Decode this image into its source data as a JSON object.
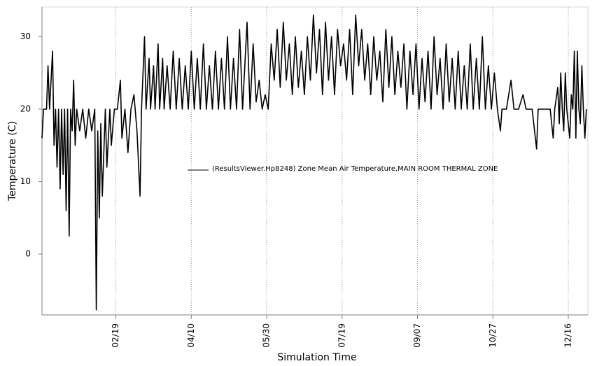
{
  "chart_data": {
    "type": "line",
    "xlabel": "Simulation Time",
    "ylabel": "Temperature (C)",
    "x": [
      "01/01",
      "01/02",
      "01/04",
      "01/05",
      "01/06",
      "01/08",
      "01/09",
      "01/10",
      "01/11",
      "01/12",
      "01/13",
      "01/14",
      "01/15",
      "01/16",
      "01/17",
      "01/18",
      "01/19",
      "01/20",
      "01/21",
      "01/22",
      "01/23",
      "01/24",
      "01/26",
      "01/28",
      "01/30",
      "02/01",
      "02/03",
      "02/05",
      "02/06",
      "02/07",
      "02/08",
      "02/09",
      "02/10",
      "02/12",
      "02/13",
      "02/15",
      "02/16",
      "02/18",
      "02/20",
      "02/22",
      "02/23",
      "02/25",
      "02/27",
      "03/01",
      "03/03",
      "03/05",
      "03/07",
      "03/08",
      "03/10",
      "03/11",
      "03/13",
      "03/14",
      "03/16",
      "03/17",
      "03/19",
      "03/20",
      "03/22",
      "03/23",
      "03/25",
      "03/27",
      "03/29",
      "03/31",
      "04/02",
      "04/04",
      "04/06",
      "04/08",
      "04/10",
      "04/12",
      "04/14",
      "04/16",
      "04/18",
      "04/20",
      "04/22",
      "04/24",
      "04/26",
      "04/28",
      "04/30",
      "05/02",
      "05/04",
      "05/06",
      "05/08",
      "05/10",
      "05/12",
      "05/14",
      "05/17",
      "05/19",
      "05/21",
      "05/23",
      "05/25",
      "05/27",
      "05/29",
      "05/31",
      "06/02",
      "06/04",
      "06/06",
      "06/08",
      "06/10",
      "06/12",
      "06/14",
      "06/16",
      "06/18",
      "06/20",
      "06/22",
      "06/24",
      "06/26",
      "06/28",
      "06/30",
      "07/02",
      "07/04",
      "07/06",
      "07/08",
      "07/10",
      "07/12",
      "07/14",
      "07/16",
      "07/18",
      "07/20",
      "07/22",
      "07/24",
      "07/26",
      "07/28",
      "07/30",
      "08/01",
      "08/03",
      "08/05",
      "08/07",
      "08/09",
      "08/11",
      "08/13",
      "08/15",
      "08/17",
      "08/19",
      "08/21",
      "08/23",
      "08/25",
      "08/27",
      "08/29",
      "08/31",
      "09/02",
      "09/04",
      "09/06",
      "09/08",
      "09/10",
      "09/12",
      "09/14",
      "09/16",
      "09/18",
      "09/20",
      "09/22",
      "09/24",
      "09/26",
      "09/28",
      "09/30",
      "10/02",
      "10/04",
      "10/06",
      "10/08",
      "10/10",
      "10/12",
      "10/14",
      "10/16",
      "10/18",
      "10/20",
      "10/22",
      "10/24",
      "10/26",
      "10/28",
      "10/30",
      "11/01",
      "11/02",
      "11/05",
      "11/08",
      "11/10",
      "11/13",
      "11/16",
      "11/18",
      "11/22",
      "11/25",
      "11/26",
      "11/29",
      "12/01",
      "12/04",
      "12/06",
      "12/07",
      "12/09",
      "12/10",
      "12/11",
      "12/12",
      "12/13",
      "12/14",
      "12/15",
      "12/17",
      "12/18",
      "12/19",
      "12/20",
      "12/21",
      "12/22",
      "12/23",
      "12/24",
      "12/25",
      "12/26",
      "12/27",
      "12/28"
    ],
    "series": [
      {
        "name": "(ResultsViewer.Hp8248) Zone Mean Air Temperature,MAIN ROOM THERMAL ZONE",
        "color": "#000000",
        "values": [
          16,
          20,
          20,
          26,
          20,
          28,
          15,
          20,
          12,
          20,
          9,
          20,
          11,
          20,
          6,
          20,
          2.5,
          20,
          17,
          24,
          15,
          20,
          17,
          20,
          16,
          20,
          17,
          20,
          -7.7,
          17,
          5,
          18,
          8,
          20,
          12,
          20,
          15,
          20,
          20,
          24,
          16,
          20,
          14,
          20,
          22,
          17,
          8,
          20,
          30,
          20,
          27,
          20,
          26,
          20,
          29,
          20,
          27,
          20,
          26,
          20,
          28,
          20,
          27,
          20,
          26,
          20,
          28,
          20,
          27,
          20,
          29,
          20,
          26,
          20,
          28,
          20,
          27,
          20,
          30,
          20,
          27,
          20,
          31,
          20,
          32,
          20,
          29,
          21,
          24,
          20,
          22,
          20,
          29,
          24,
          31,
          23,
          32,
          24,
          29,
          22,
          30,
          23,
          28,
          22,
          30,
          24,
          33,
          25,
          31,
          22,
          32,
          24,
          30,
          22,
          31,
          26,
          29,
          24,
          31,
          22,
          33,
          26,
          31,
          24,
          29,
          22,
          30,
          24,
          28,
          21,
          31,
          23,
          30,
          22,
          28,
          23,
          29,
          20,
          28,
          22,
          29,
          20,
          27,
          21,
          28,
          20,
          30,
          22,
          27,
          20,
          29,
          21,
          27,
          20,
          28,
          20,
          26,
          20,
          29,
          20,
          27,
          20,
          30,
          20,
          26,
          20,
          25,
          20,
          17,
          20,
          20,
          24,
          20,
          20,
          22,
          20,
          20,
          14.5,
          20,
          20,
          20,
          20,
          16,
          20,
          23,
          18,
          25,
          20,
          17,
          25,
          20,
          16,
          22,
          20,
          28,
          16,
          28,
          20,
          18,
          26,
          20,
          16,
          20
        ]
      }
    ],
    "xlim": [
      "01/01",
      "12/29"
    ],
    "xticks": [
      "02/19",
      "04/10",
      "05/30",
      "07/19",
      "09/07",
      "10/27",
      "12/16"
    ],
    "ylim": [
      -8.4,
      34.1
    ],
    "yticks": [
      0,
      10,
      20,
      30
    ],
    "grid": "x"
  }
}
